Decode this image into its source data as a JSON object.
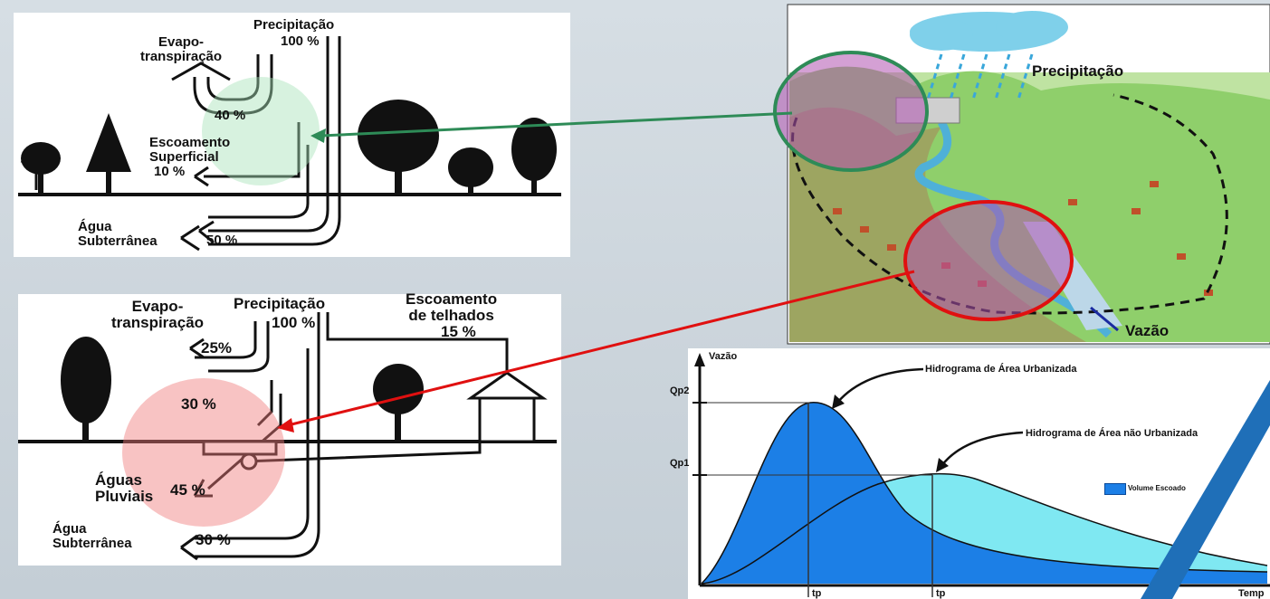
{
  "top_diagram": {
    "evapotranspiracao": "Evapo-\ntranspiração",
    "precipitacao": "Precipitação",
    "precipitacao_pct": "100 %",
    "infiltracao_pct": "40 %",
    "escoamento": "Escoamento\nSuperficial",
    "escoamento_pct": "10 %",
    "agua_subterranea": "Água\nSubterrânea",
    "subterranea_pct": "50 %"
  },
  "bottom_diagram": {
    "evapotranspiracao": "Evapo-\ntranspiração",
    "evapo_pct": "25%",
    "precipitacao": "Precipitação",
    "precipitacao_pct": "100 %",
    "telhados": "Escoamento\nde telhados",
    "telhados_pct": "15 %",
    "infiltracao_pct": "30 %",
    "aguas_pluviais": "Águas\nPluviais",
    "pluviais_pct": "45 %",
    "agua_subterranea": "Água\nSubterrânea",
    "subterranea_pct": "30 %"
  },
  "landscape": {
    "precipitacao": "Precipitação",
    "vazao": "Vazão"
  },
  "hydrograph": {
    "y_axis": "Vazão",
    "x_axis": "Temp",
    "qp2": "Qp2",
    "qp1": "Qp1",
    "t1": "tp",
    "t2": "tp",
    "curve_urban": "Hidrograma de Área Urbanizada",
    "curve_rural": "Hidrograma de Área não Urbanizada",
    "legend": "Volume Escoado"
  },
  "colors": {
    "urban_fill": "#1c7fe6",
    "rural_fill": "#7fe8f2",
    "green_marker": "#2e8b57",
    "red_marker": "#e01010",
    "blue_stripe": "#1f6fb8"
  }
}
